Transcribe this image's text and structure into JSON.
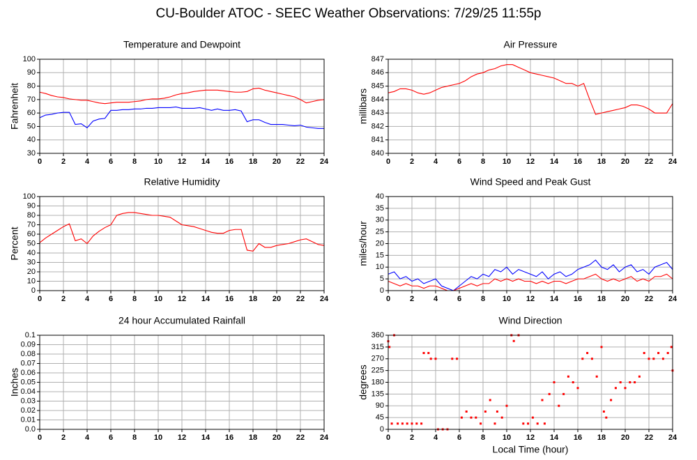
{
  "title": "CU-Boulder ATOC - SEEC Weather Observations: 7/29/25 11:55p",
  "chart_data": [
    {
      "type": "line",
      "title": "Temperature and Dewpoint",
      "y_label": "Fahrenheit",
      "x": [
        0,
        0.5,
        1,
        1.5,
        2,
        2.5,
        3,
        3.5,
        4,
        4.5,
        5,
        5.5,
        6,
        6.5,
        7,
        7.5,
        8,
        8.5,
        9,
        9.5,
        10,
        10.5,
        11,
        11.5,
        12,
        12.5,
        13,
        13.5,
        14,
        14.5,
        15,
        15.5,
        16,
        16.5,
        17,
        17.5,
        18,
        18.5,
        19,
        19.5,
        20,
        20.5,
        21,
        21.5,
        22,
        22.5,
        23,
        23.5,
        24
      ],
      "series": [
        {
          "color": "#ff0000",
          "values": [
            75.5,
            74.5,
            73,
            72,
            71.5,
            70.5,
            70,
            69.5,
            69.5,
            68.5,
            67.5,
            67,
            67.5,
            68,
            68,
            68,
            68.5,
            69,
            70,
            70.5,
            70.5,
            71,
            72,
            73.5,
            74.5,
            75,
            76,
            76.5,
            77,
            77,
            77,
            76.5,
            76,
            75.5,
            75.5,
            76,
            78,
            78.5,
            77,
            76,
            75,
            74,
            73,
            72,
            70,
            67.5,
            68.5,
            69.5,
            70
          ]
        },
        {
          "color": "#0000ff",
          "values": [
            56.5,
            58.5,
            59,
            60,
            60.5,
            60.5,
            51.5,
            52,
            49,
            54,
            55.5,
            56,
            62,
            62,
            62.5,
            62.5,
            63,
            63,
            63.5,
            63.5,
            64,
            64,
            64,
            64.5,
            63.5,
            63.5,
            63.5,
            64,
            63,
            62,
            63,
            62,
            62,
            62.5,
            61.5,
            53.5,
            55,
            55,
            53,
            51.5,
            51.5,
            51.5,
            51,
            50.5,
            51,
            49.5,
            49,
            48.5,
            48.5
          ]
        }
      ],
      "xlim": [
        0,
        24
      ],
      "xticks": [
        0,
        2,
        4,
        6,
        8,
        10,
        12,
        14,
        16,
        18,
        20,
        22,
        24
      ],
      "ylim": [
        30,
        100
      ],
      "yticks": [
        30,
        40,
        50,
        60,
        70,
        80,
        90,
        100
      ],
      "grid": true
    },
    {
      "type": "line",
      "title": "Air Pressure",
      "y_label": "millibars",
      "x": [
        0,
        0.5,
        1,
        1.5,
        2,
        2.5,
        3,
        3.5,
        4,
        4.5,
        5,
        5.5,
        6,
        6.5,
        7,
        7.5,
        8,
        8.5,
        9,
        9.5,
        10,
        10.5,
        11,
        11.5,
        12,
        12.5,
        13,
        13.5,
        14,
        14.5,
        15,
        15.5,
        16,
        16.5,
        17,
        17.5,
        18,
        18.5,
        19,
        19.5,
        20,
        20.5,
        21,
        21.5,
        22,
        22.5,
        23,
        23.5,
        24
      ],
      "series": [
        {
          "color": "#ff0000",
          "values": [
            844.5,
            844.6,
            844.8,
            844.8,
            844.7,
            844.5,
            844.4,
            844.5,
            844.7,
            844.9,
            845.0,
            845.1,
            845.2,
            845.4,
            845.7,
            845.9,
            846.0,
            846.2,
            846.3,
            846.5,
            846.6,
            846.6,
            846.4,
            846.2,
            846.0,
            845.9,
            845.8,
            845.7,
            845.6,
            845.4,
            845.2,
            845.2,
            845.0,
            845.2,
            844.0,
            842.9,
            843.0,
            843.1,
            843.2,
            843.3,
            843.4,
            843.6,
            843.6,
            843.5,
            843.3,
            843.0,
            843.0,
            843.0,
            843.7
          ]
        }
      ],
      "xlim": [
        0,
        24
      ],
      "xticks": [
        0,
        2,
        4,
        6,
        8,
        10,
        12,
        14,
        16,
        18,
        20,
        22,
        24
      ],
      "ylim": [
        840,
        847
      ],
      "yticks": [
        840,
        841,
        842,
        843,
        844,
        845,
        846,
        847
      ],
      "grid": true
    },
    {
      "type": "line",
      "title": "Relative Humidity",
      "y_label": "Percent",
      "x": [
        0,
        0.5,
        1,
        1.5,
        2,
        2.5,
        3,
        3.5,
        4,
        4.5,
        5,
        5.5,
        6,
        6.5,
        7,
        7.5,
        8,
        8.5,
        9,
        9.5,
        10,
        10.5,
        11,
        11.5,
        12,
        12.5,
        13,
        13.5,
        14,
        14.5,
        15,
        15.5,
        16,
        16.5,
        17,
        17.5,
        18,
        18.5,
        19,
        19.5,
        20,
        20.5,
        21,
        21.5,
        22,
        22.5,
        23,
        23.5,
        24
      ],
      "series": [
        {
          "color": "#ff0000",
          "values": [
            51,
            56,
            60,
            64,
            68,
            71,
            53,
            55,
            50,
            58,
            63,
            67,
            70,
            80,
            82,
            83,
            83,
            82,
            81,
            80,
            80,
            79,
            78,
            74,
            70,
            69,
            68,
            66,
            64,
            62,
            61,
            61,
            64,
            65,
            65,
            43,
            42,
            50,
            46,
            46,
            48,
            49,
            50,
            52,
            54,
            55,
            52,
            49,
            48
          ]
        }
      ],
      "xlim": [
        0,
        24
      ],
      "xticks": [
        0,
        2,
        4,
        6,
        8,
        10,
        12,
        14,
        16,
        18,
        20,
        22,
        24
      ],
      "ylim": [
        0,
        100
      ],
      "yticks": [
        0,
        10,
        20,
        30,
        40,
        50,
        60,
        70,
        80,
        90,
        100
      ],
      "grid": true
    },
    {
      "type": "line",
      "title": "Wind Speed and Peak Gust",
      "y_label": "miles/hour",
      "x": [
        0,
        0.5,
        1,
        1.5,
        2,
        2.5,
        3,
        3.5,
        4,
        4.5,
        5,
        5.5,
        6,
        6.5,
        7,
        7.5,
        8,
        8.5,
        9,
        9.5,
        10,
        10.5,
        11,
        11.5,
        12,
        12.5,
        13,
        13.5,
        14,
        14.5,
        15,
        15.5,
        16,
        16.5,
        17,
        17.5,
        18,
        18.5,
        19,
        19.5,
        20,
        20.5,
        21,
        21.5,
        22,
        22.5,
        23,
        23.5,
        24
      ],
      "series": [
        {
          "color": "#0000ff",
          "values": [
            7,
            8,
            5,
            6,
            4,
            5,
            3,
            4,
            5,
            2,
            1,
            0,
            2,
            4,
            6,
            5,
            7,
            6,
            9,
            8,
            10,
            7,
            9,
            8,
            7,
            6,
            8,
            5,
            7,
            8,
            6,
            7,
            9,
            10,
            11,
            13,
            10,
            9,
            11,
            8,
            10,
            11,
            8,
            9,
            7,
            10,
            11,
            12,
            9
          ]
        },
        {
          "color": "#ff0000",
          "values": [
            4,
            3,
            2,
            3,
            2,
            2,
            1,
            2,
            2,
            1,
            0,
            0,
            1,
            2,
            3,
            2,
            3,
            3,
            5,
            4,
            5,
            4,
            5,
            4,
            4,
            3,
            4,
            3,
            4,
            4,
            3,
            4,
            5,
            5,
            6,
            7,
            5,
            4,
            5,
            4,
            5,
            6,
            4,
            5,
            4,
            6,
            6,
            7,
            5
          ]
        }
      ],
      "xlim": [
        0,
        24
      ],
      "xticks": [
        0,
        2,
        4,
        6,
        8,
        10,
        12,
        14,
        16,
        18,
        20,
        22,
        24
      ],
      "ylim": [
        0,
        40
      ],
      "yticks": [
        0,
        5,
        10,
        15,
        20,
        25,
        30,
        35,
        40
      ],
      "grid": true
    },
    {
      "type": "line",
      "title": "24 hour Accumulated Rainfall",
      "y_label": "Inches",
      "x": [
        0,
        24
      ],
      "series": [
        {
          "color": "#ff0000",
          "values": [
            0,
            0
          ]
        }
      ],
      "xlim": [
        0,
        24
      ],
      "xticks": [
        0,
        2,
        4,
        6,
        8,
        10,
        12,
        14,
        16,
        18,
        20,
        22,
        24
      ],
      "ylim": [
        0,
        0.1
      ],
      "yticks": [
        {
          "value": 0,
          "label": "0.0"
        },
        0.01,
        0.02,
        0.03,
        0.04,
        0.05,
        0.06,
        0.07,
        0.08,
        0.09,
        0.1
      ],
      "grid": true
    },
    {
      "type": "scatter",
      "title": "Wind Direction",
      "y_label": "degrees",
      "x_label": "Local Time (hour)",
      "x": [
        0,
        0.1,
        0.3,
        0.5,
        0.8,
        1.2,
        1.6,
        2,
        2.4,
        2.8,
        3,
        3.4,
        3.6,
        4,
        4.2,
        4.6,
        5,
        5.4,
        5.8,
        6.2,
        6.6,
        7,
        7.4,
        7.8,
        8.2,
        8.6,
        9,
        9.2,
        9.6,
        10,
        10.4,
        10.6,
        11,
        11.4,
        11.8,
        12.2,
        12.6,
        13,
        13.2,
        13.6,
        14,
        14.4,
        14.8,
        15.2,
        15.6,
        16,
        16.4,
        16.8,
        17.2,
        17.6,
        18,
        18.2,
        18.4,
        18.8,
        19.2,
        19.6,
        20,
        20.4,
        20.8,
        21.2,
        21.6,
        22,
        22.4,
        22.8,
        23.2,
        23.6,
        23.9,
        24
      ],
      "series": [
        {
          "color": "#ff0000",
          "values": [
            337,
            315,
            22,
            360,
            22,
            22,
            22,
            22,
            22,
            22,
            292,
            292,
            270,
            270,
            0,
            0,
            0,
            270,
            270,
            45,
            68,
            45,
            45,
            22,
            68,
            112,
            22,
            68,
            45,
            90,
            360,
            338,
            360,
            22,
            22,
            45,
            22,
            112,
            22,
            135,
            180,
            90,
            135,
            202,
            180,
            158,
            270,
            292,
            270,
            202,
            315,
            68,
            45,
            112,
            158,
            180,
            158,
            180,
            180,
            202,
            292,
            270,
            270,
            292,
            270,
            292,
            315,
            225
          ]
        }
      ],
      "xlim": [
        0,
        24
      ],
      "xticks": [
        0,
        2,
        4,
        6,
        8,
        10,
        12,
        14,
        16,
        18,
        20,
        22,
        24
      ],
      "ylim": [
        0,
        360
      ],
      "yticks": [
        0,
        45,
        90,
        135,
        180,
        225,
        270,
        315,
        360
      ],
      "grid": true
    }
  ]
}
